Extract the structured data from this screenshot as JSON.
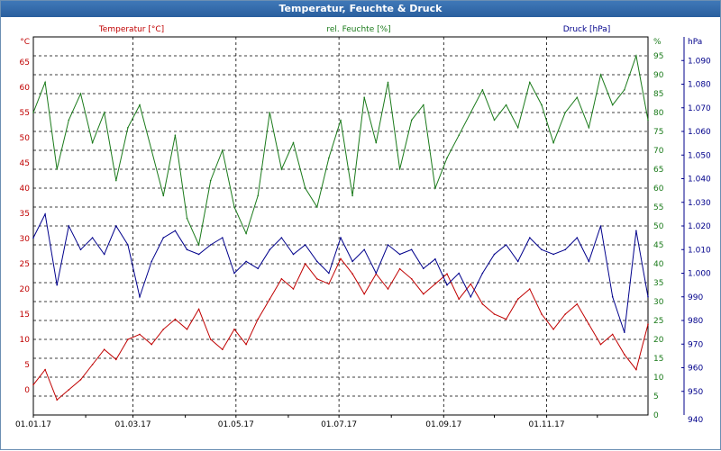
{
  "window": {
    "title": "Temperatur, Feuchte & Druck"
  },
  "chart_data": {
    "type": "line",
    "title": "Temperatur, Feuchte & Druck",
    "xlabel": "",
    "x_ticks": [
      "01.01.17",
      "01.03.17",
      "01.05.17",
      "01.07.17",
      "01.09.17",
      "01.11.17"
    ],
    "xlim": [
      "01.01.17",
      "31.12.17"
    ],
    "grid": true,
    "axes": {
      "temperature": {
        "label": "Temperatur [°C]",
        "unit": "°C",
        "range": [
          -5,
          70
        ],
        "ticks": [
          0,
          5,
          10,
          15,
          20,
          25,
          30,
          35,
          40,
          45,
          50,
          55,
          60,
          65
        ],
        "color": "#c00000"
      },
      "humidity": {
        "label": "rel. Feuchte [%]",
        "unit": "%",
        "range": [
          0,
          100
        ],
        "ticks": [
          0,
          5,
          10,
          15,
          20,
          25,
          30,
          35,
          40,
          45,
          50,
          55,
          60,
          65,
          70,
          75,
          80,
          85,
          90,
          95
        ],
        "color": "#1a7a1a"
      },
      "pressure": {
        "label": "Druck [hPa]",
        "unit": "hPa",
        "range": [
          940,
          1100
        ],
        "ticks": [
          950,
          960,
          970,
          980,
          990,
          1000,
          1010,
          1020,
          1030,
          1040,
          1050,
          1060,
          1070,
          1080,
          1090
        ],
        "tick_labels": [
          "950",
          "960",
          "970",
          "980",
          "990",
          "1.000",
          "1.010",
          "1.020",
          "1.030",
          "1.040",
          "1.050",
          "1.060",
          "1.070",
          "1.080",
          "1.090"
        ],
        "color": "#00008b"
      }
    },
    "series": [
      {
        "name": "Temperatur [°C]",
        "axis": "temperature",
        "color": "#c00000",
        "x": [
          "01.01.17",
          "08.01.17",
          "15.01.17",
          "22.01.17",
          "29.01.17",
          "05.02.17",
          "12.02.17",
          "19.02.17",
          "26.02.17",
          "05.03.17",
          "12.03.17",
          "19.03.17",
          "26.03.17",
          "02.04.17",
          "09.04.17",
          "16.04.17",
          "23.04.17",
          "30.04.17",
          "07.05.17",
          "14.05.17",
          "21.05.17",
          "28.05.17",
          "04.06.17",
          "11.06.17",
          "18.06.17",
          "25.06.17",
          "02.07.17",
          "09.07.17",
          "16.07.17",
          "23.07.17",
          "30.07.17",
          "06.08.17",
          "13.08.17",
          "20.08.17",
          "27.08.17",
          "03.09.17",
          "10.09.17",
          "17.09.17",
          "24.09.17",
          "01.10.17",
          "08.10.17",
          "15.10.17",
          "22.10.17",
          "29.10.17",
          "05.11.17",
          "12.11.17",
          "19.11.17",
          "26.11.17",
          "03.12.17",
          "10.12.17",
          "17.12.17",
          "24.12.17",
          "31.12.17"
        ],
        "values": [
          1,
          4,
          -2,
          0,
          2,
          5,
          8,
          6,
          10,
          11,
          9,
          12,
          14,
          12,
          16,
          10,
          8,
          12,
          9,
          14,
          18,
          22,
          20,
          25,
          22,
          21,
          26,
          23,
          19,
          23,
          20,
          24,
          22,
          19,
          21,
          23,
          18,
          21,
          17,
          15,
          14,
          18,
          20,
          15,
          12,
          15,
          17,
          13,
          9,
          11,
          7,
          4,
          13
        ]
      },
      {
        "name": "rel. Feuchte [%]",
        "axis": "humidity",
        "color": "#1a7a1a",
        "x": [
          "01.01.17",
          "08.01.17",
          "15.01.17",
          "22.01.17",
          "29.01.17",
          "05.02.17",
          "12.02.17",
          "19.02.17",
          "26.02.17",
          "05.03.17",
          "12.03.17",
          "19.03.17",
          "26.03.17",
          "02.04.17",
          "09.04.17",
          "16.04.17",
          "23.04.17",
          "30.04.17",
          "07.05.17",
          "14.05.17",
          "21.05.17",
          "28.05.17",
          "04.06.17",
          "11.06.17",
          "18.06.17",
          "25.06.17",
          "02.07.17",
          "09.07.17",
          "16.07.17",
          "23.07.17",
          "30.07.17",
          "06.08.17",
          "13.08.17",
          "20.08.17",
          "27.08.17",
          "03.09.17",
          "10.09.17",
          "17.09.17",
          "24.09.17",
          "01.10.17",
          "08.10.17",
          "15.10.17",
          "22.10.17",
          "29.10.17",
          "05.11.17",
          "12.11.17",
          "19.11.17",
          "26.11.17",
          "03.12.17",
          "10.12.17",
          "17.12.17",
          "24.12.17",
          "31.12.17"
        ],
        "values": [
          80,
          88,
          65,
          78,
          85,
          72,
          80,
          62,
          76,
          82,
          70,
          58,
          74,
          52,
          45,
          62,
          70,
          55,
          48,
          58,
          80,
          65,
          72,
          60,
          55,
          68,
          78,
          58,
          84,
          72,
          88,
          65,
          78,
          82,
          60,
          68,
          74,
          80,
          86,
          78,
          82,
          76,
          88,
          82,
          72,
          80,
          84,
          76,
          90,
          82,
          86,
          95,
          78
        ]
      },
      {
        "name": "Druck [hPa]",
        "axis": "pressure",
        "color": "#00008b",
        "x": [
          "01.01.17",
          "08.01.17",
          "15.01.17",
          "22.01.17",
          "29.01.17",
          "05.02.17",
          "12.02.17",
          "19.02.17",
          "26.02.17",
          "05.03.17",
          "12.03.17",
          "19.03.17",
          "26.03.17",
          "02.04.17",
          "09.04.17",
          "16.04.17",
          "23.04.17",
          "30.04.17",
          "07.05.17",
          "14.05.17",
          "21.05.17",
          "28.05.17",
          "04.06.17",
          "11.06.17",
          "18.06.17",
          "25.06.17",
          "02.07.17",
          "09.07.17",
          "16.07.17",
          "23.07.17",
          "30.07.17",
          "06.08.17",
          "13.08.17",
          "20.08.17",
          "27.08.17",
          "03.09.17",
          "10.09.17",
          "17.09.17",
          "24.09.17",
          "01.10.17",
          "08.10.17",
          "15.10.17",
          "22.10.17",
          "29.10.17",
          "05.11.17",
          "12.11.17",
          "19.11.17",
          "26.11.17",
          "03.12.17",
          "10.12.17",
          "17.12.17",
          "24.12.17",
          "31.12.17"
        ],
        "values": [
          1015,
          1025,
          995,
          1020,
          1010,
          1015,
          1008,
          1020,
          1012,
          990,
          1005,
          1015,
          1018,
          1010,
          1008,
          1012,
          1015,
          1000,
          1005,
          1002,
          1010,
          1015,
          1008,
          1012,
          1005,
          1000,
          1015,
          1005,
          1010,
          1000,
          1012,
          1008,
          1010,
          1002,
          1006,
          995,
          1000,
          990,
          1000,
          1008,
          1012,
          1005,
          1015,
          1010,
          1008,
          1010,
          1015,
          1005,
          1020,
          990,
          975,
          1018,
          990
        ]
      }
    ]
  }
}
